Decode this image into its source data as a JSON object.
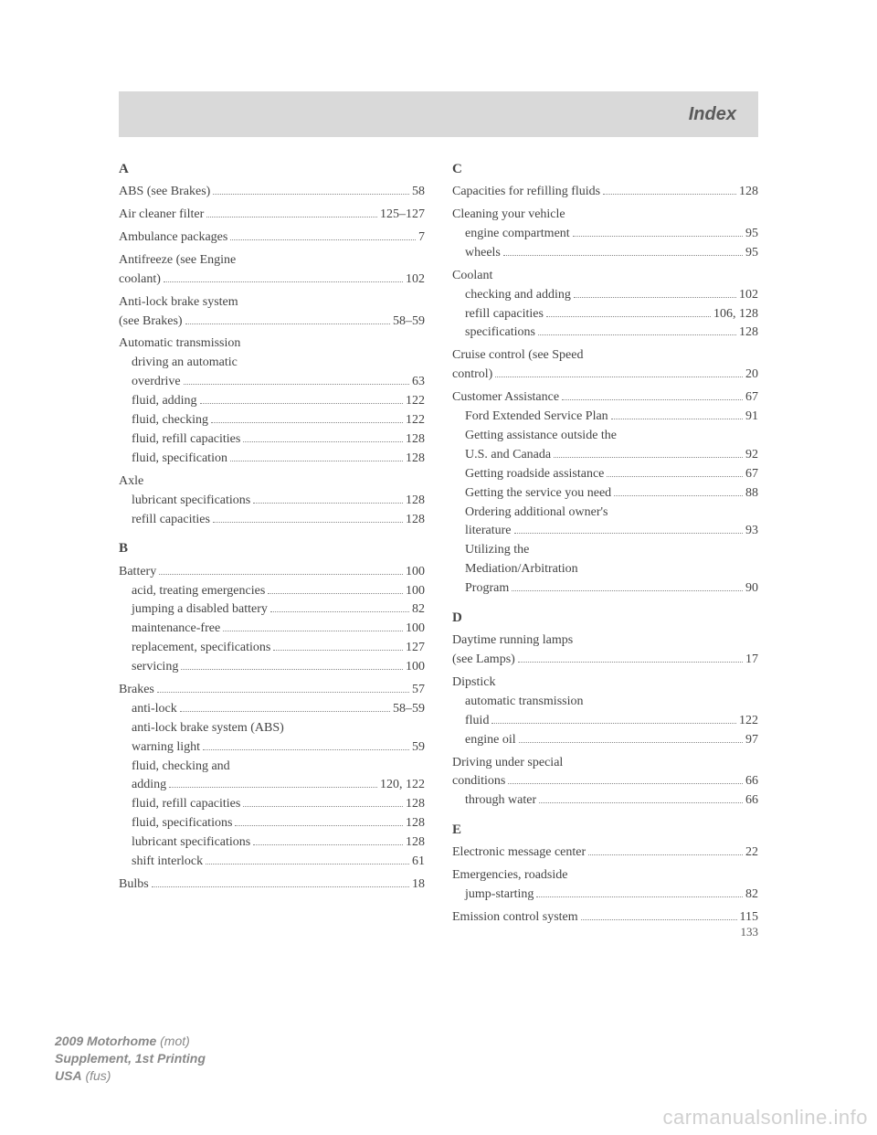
{
  "header": {
    "title": "Index"
  },
  "left": {
    "A": {
      "letter": "A",
      "entries": [
        {
          "label": "ABS (see Brakes)",
          "page": "58"
        },
        {
          "label": "Air cleaner filter",
          "page": "125–127"
        },
        {
          "label": "Ambulance packages",
          "page": "7"
        },
        {
          "label": "Antifreeze (see Engine coolant)",
          "page": "102",
          "wrap": "Antifreeze (see Engine|coolant)"
        },
        {
          "label": "Anti-lock brake system (see Brakes)",
          "page": "58–59",
          "wrap": "Anti-lock brake system|(see Brakes)"
        },
        {
          "label": "Automatic transmission",
          "page": "",
          "subs": [
            {
              "label": "driving an automatic overdrive",
              "page": "63",
              "wrap": "driving an automatic|overdrive"
            },
            {
              "label": "fluid, adding",
              "page": "122"
            },
            {
              "label": "fluid, checking",
              "page": "122"
            },
            {
              "label": "fluid, refill capacities",
              "page": "128"
            },
            {
              "label": "fluid, specification",
              "page": "128"
            }
          ]
        },
        {
          "label": "Axle",
          "page": "",
          "subs": [
            {
              "label": "lubricant specifications",
              "page": "128"
            },
            {
              "label": "refill capacities",
              "page": "128"
            }
          ]
        }
      ]
    },
    "B": {
      "letter": "B",
      "entries": [
        {
          "label": "Battery",
          "page": "100",
          "subs": [
            {
              "label": "acid, treating emergencies",
              "page": "100"
            },
            {
              "label": "jumping a disabled battery",
              "page": "82"
            },
            {
              "label": "maintenance-free",
              "page": "100"
            },
            {
              "label": "replacement, specifications",
              "page": "127"
            },
            {
              "label": "servicing",
              "page": "100"
            }
          ]
        },
        {
          "label": "Brakes",
          "page": "57",
          "subs": [
            {
              "label": "anti-lock",
              "page": "58–59"
            },
            {
              "label": "anti-lock brake system (ABS) warning light",
              "page": "59",
              "wrap": "anti-lock brake system (ABS)|warning light"
            },
            {
              "label": "fluid, checking and adding",
              "page": "120, 122",
              "wrap": "fluid, checking and|adding"
            },
            {
              "label": "fluid, refill capacities",
              "page": "128"
            },
            {
              "label": "fluid, specifications",
              "page": "128"
            },
            {
              "label": "lubricant specifications",
              "page": "128"
            },
            {
              "label": "shift interlock",
              "page": "61"
            }
          ]
        },
        {
          "label": "Bulbs",
          "page": "18"
        }
      ]
    }
  },
  "right": {
    "C": {
      "letter": "C",
      "entries": [
        {
          "label": "Capacities for refilling fluids",
          "page": "128"
        },
        {
          "label": "Cleaning your vehicle",
          "page": "",
          "subs": [
            {
              "label": "engine compartment",
              "page": "95"
            },
            {
              "label": "wheels",
              "page": "95"
            }
          ]
        },
        {
          "label": "Coolant",
          "page": "",
          "subs": [
            {
              "label": "checking and adding",
              "page": "102"
            },
            {
              "label": "refill capacities",
              "page": "106, 128"
            },
            {
              "label": "specifications",
              "page": "128"
            }
          ]
        },
        {
          "label": "Cruise control (see Speed control)",
          "page": "20",
          "wrap": "Cruise control (see Speed|control)"
        },
        {
          "label": "Customer Assistance",
          "page": "67",
          "subs": [
            {
              "label": "Ford Extended Service Plan",
              "page": "91"
            },
            {
              "label": "Getting assistance outside the U.S. and Canada",
              "page": "92",
              "wrap": "Getting assistance outside the|U.S. and Canada"
            },
            {
              "label": "Getting roadside assistance",
              "page": "67"
            },
            {
              "label": "Getting the service you need",
              "page": "88"
            },
            {
              "label": "Ordering additional owner's literature",
              "page": "93",
              "wrap": "Ordering additional owner's|literature"
            },
            {
              "label": "Utilizing the Mediation/Arbitration Program",
              "page": "90",
              "wrap": "Utilizing the|Mediation/Arbitration|Program"
            }
          ]
        }
      ]
    },
    "D": {
      "letter": "D",
      "entries": [
        {
          "label": "Daytime running lamps (see Lamps)",
          "page": "17",
          "wrap": "Daytime running lamps|(see Lamps)"
        },
        {
          "label": "Dipstick",
          "page": "",
          "subs": [
            {
              "label": "automatic transmission fluid",
              "page": "122",
              "wrap": "automatic transmission|fluid"
            },
            {
              "label": "engine oil",
              "page": "97"
            }
          ]
        },
        {
          "label": "Driving under special conditions",
          "page": "66",
          "wrap": "Driving under special|conditions",
          "subs": [
            {
              "label": "through water",
              "page": "66"
            }
          ]
        }
      ]
    },
    "E": {
      "letter": "E",
      "entries": [
        {
          "label": "Electronic message center",
          "page": "22"
        },
        {
          "label": "Emergencies, roadside",
          "page": "",
          "subs": [
            {
              "label": "jump-starting",
              "page": "82"
            }
          ]
        },
        {
          "label": "Emission control system",
          "page": "115"
        }
      ]
    }
  },
  "pagenum": "133",
  "footer": {
    "line1_bold": "2009 Motorhome",
    "line1_ital": "(mot)",
    "line2": "Supplement, 1st Printing",
    "line3_bold": "USA",
    "line3_ital": "(fus)"
  },
  "watermark": "carmanualsonline.info"
}
